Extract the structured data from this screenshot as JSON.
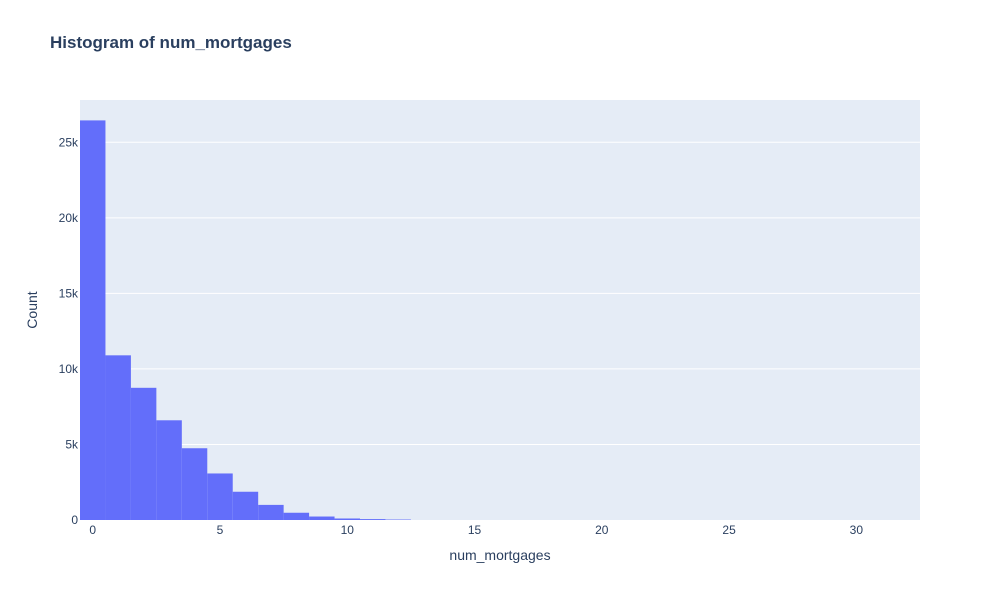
{
  "chart_data": {
    "type": "bar",
    "title": "Histogram of num_mortgages",
    "xlabel": "num_mortgages",
    "ylabel": "Count",
    "xlim": [
      -0.5,
      32.5
    ],
    "ylim": [
      0,
      27800
    ],
    "xticks": [
      0,
      5,
      10,
      15,
      20,
      25,
      30
    ],
    "xtick_labels": [
      "0",
      "5",
      "10",
      "15",
      "20",
      "25",
      "30"
    ],
    "yticks": [
      0,
      5000,
      10000,
      15000,
      20000,
      25000
    ],
    "ytick_labels": [
      "0",
      "5k",
      "10k",
      "15k",
      "20k",
      "25k"
    ],
    "bin_width": 1,
    "x": [
      0,
      1,
      2,
      3,
      4,
      5,
      6,
      7,
      8,
      9,
      10,
      11,
      12
    ],
    "values": [
      26450,
      10900,
      8750,
      6600,
      4750,
      3080,
      1870,
      1000,
      480,
      230,
      100,
      60,
      30
    ],
    "grid": true,
    "colors": {
      "bar": "#636efa",
      "plot_bg": "#e5ecf6",
      "grid": "#ffffff",
      "text": "#2a3f5f"
    }
  }
}
